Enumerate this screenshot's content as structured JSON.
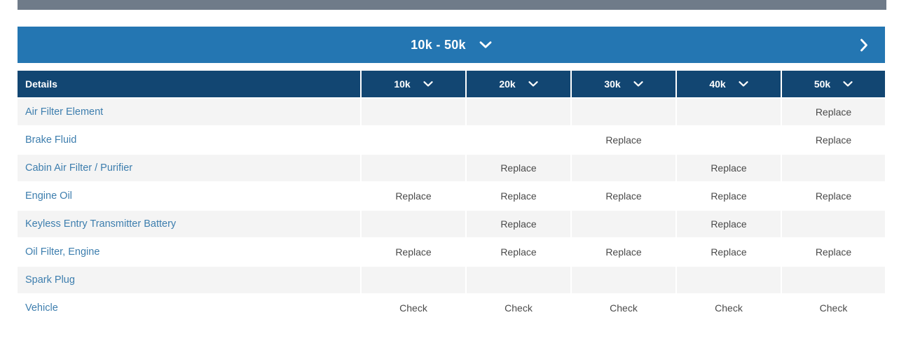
{
  "banner": {
    "label": "10k - 50k",
    "dropdown_icon": "chevron-down-icon",
    "next_icon": "chevron-right-icon"
  },
  "table": {
    "columns": [
      "Details",
      "10k",
      "20k",
      "30k",
      "40k",
      "50k"
    ],
    "rows": [
      {
        "label": "Air Filter Element",
        "values": [
          "",
          "",
          "",
          "",
          "Replace"
        ]
      },
      {
        "label": "Brake Fluid",
        "values": [
          "",
          "",
          "Replace",
          "",
          "Replace"
        ]
      },
      {
        "label": "Cabin Air Filter / Purifier",
        "values": [
          "",
          "Replace",
          "",
          "Replace",
          ""
        ]
      },
      {
        "label": "Engine Oil",
        "values": [
          "Replace",
          "Replace",
          "Replace",
          "Replace",
          "Replace"
        ]
      },
      {
        "label": "Keyless Entry Transmitter Battery",
        "values": [
          "",
          "Replace",
          "",
          "Replace",
          ""
        ]
      },
      {
        "label": "Oil Filter, Engine",
        "values": [
          "Replace",
          "Replace",
          "Replace",
          "Replace",
          "Replace"
        ]
      },
      {
        "label": "Spark Plug",
        "values": [
          "",
          "",
          "",
          "",
          ""
        ]
      },
      {
        "label": "Vehicle",
        "values": [
          "Check",
          "Check",
          "Check",
          "Check",
          "Check"
        ]
      }
    ]
  },
  "colors": {
    "top_bar": "#6F7B89",
    "banner_bg": "#2476B2",
    "header_bg": "#124672",
    "row_alt_bg": "#F4F4F4",
    "row_bg": "#FFFFFF",
    "link_text": "#3D7EAE",
    "cell_text": "#4A4A4A"
  }
}
